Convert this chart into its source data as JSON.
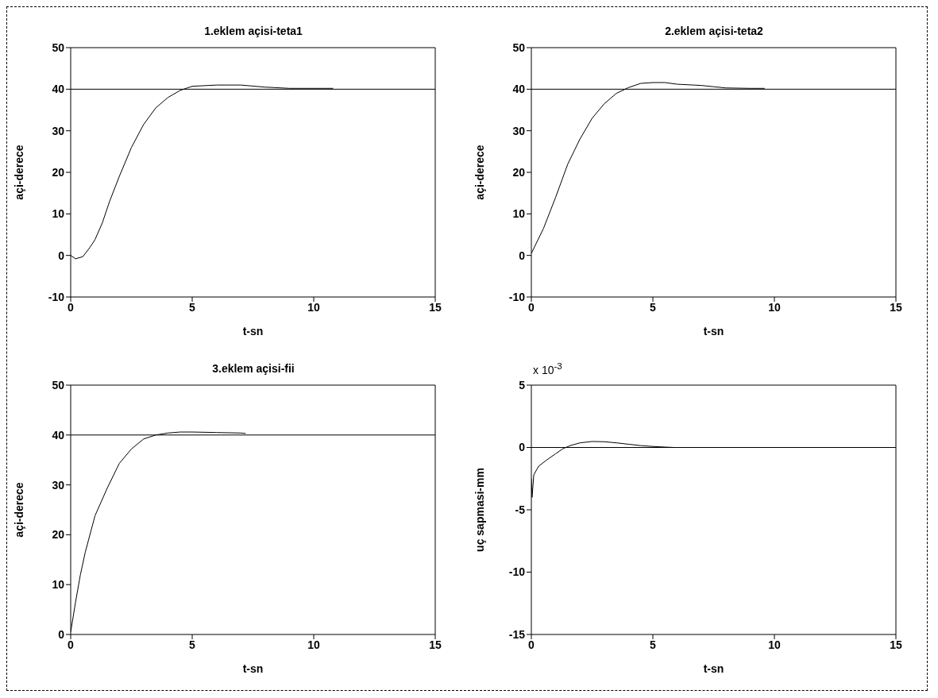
{
  "chart_data": [
    {
      "type": "line",
      "title": "1.eklem açisi-teta1",
      "xlabel": "t-sn",
      "ylabel": "açi-derece",
      "x": [
        0,
        0.2,
        0.5,
        0.8,
        1.0,
        1.3,
        1.6,
        2.0,
        2.5,
        3.0,
        3.5,
        4.0,
        4.5,
        5,
        6,
        7,
        8,
        9,
        10,
        10.8
      ],
      "series": [
        {
          "color": "#000000",
          "values": [
            0,
            -0.8,
            -0.3,
            2,
            3.8,
            7.8,
            13,
            19,
            26,
            31.5,
            35.5,
            38,
            39.7,
            40.7,
            41,
            41,
            40.5,
            40.2,
            40.2,
            40.2
          ]
        }
      ],
      "xlim": [
        0,
        15
      ],
      "ylim": [
        -10,
        50
      ],
      "xticks": [
        0,
        5,
        10,
        15
      ],
      "yticks": [
        -10,
        0,
        10,
        20,
        30,
        40,
        50
      ],
      "ref_lines": [
        {
          "axis": "y",
          "value": 40,
          "color": "#000000"
        }
      ]
    },
    {
      "type": "line",
      "title": "2.eklem açisi-teta2",
      "xlabel": "t-sn",
      "ylabel": "açi-derece",
      "x": [
        0,
        0.5,
        1.0,
        1.5,
        2.0,
        2.5,
        3,
        3.5,
        4,
        4.5,
        5,
        5.5,
        6,
        7,
        7.5,
        8,
        9,
        9.6
      ],
      "series": [
        {
          "color": "#000000",
          "values": [
            0.5,
            6.5,
            14,
            22,
            28,
            33,
            36.5,
            39,
            40.4,
            41.4,
            41.6,
            41.6,
            41.2,
            40.9,
            40.6,
            40.3,
            40.2,
            40.2
          ]
        }
      ],
      "xlim": [
        0,
        15
      ],
      "ylim": [
        -10,
        50
      ],
      "xticks": [
        0,
        5,
        10,
        15
      ],
      "yticks": [
        -10,
        0,
        10,
        20,
        30,
        40,
        50
      ],
      "ref_lines": [
        {
          "axis": "y",
          "value": 40,
          "color": "#000000"
        }
      ]
    },
    {
      "type": "line",
      "title": "3.eklem açisi-fii",
      "xlabel": "t-sn",
      "ylabel": "açi-derece",
      "x": [
        0,
        0.2,
        0.4,
        0.6,
        1.0,
        1.5,
        2,
        2.5,
        3,
        3.5,
        4,
        4.5,
        5,
        6,
        7,
        7.2
      ],
      "series": [
        {
          "color": "#000000",
          "values": [
            0.5,
            6.5,
            12,
            16.5,
            23.8,
            29.3,
            34.3,
            37.2,
            39.2,
            40,
            40.4,
            40.6,
            40.6,
            40.5,
            40.4,
            40.3
          ]
        }
      ],
      "xlim": [
        0,
        15
      ],
      "ylim": [
        0,
        50
      ],
      "xticks": [
        0,
        5,
        10,
        15
      ],
      "yticks": [
        0,
        10,
        20,
        30,
        40,
        50
      ],
      "ref_lines": [
        {
          "axis": "y",
          "value": 40,
          "color": "#000000"
        }
      ]
    },
    {
      "type": "line",
      "xlabel": "t-sn",
      "ylabel": "uç sapmasi-mm",
      "annotations": [
        "x 10$^{-3}$"
      ],
      "x": [
        0,
        0.03,
        0.1,
        0.3,
        0.6,
        1.0,
        1.3,
        1.6,
        2,
        2.5,
        3,
        3.5,
        4,
        4.5,
        5,
        5.5,
        5.9
      ],
      "series": [
        {
          "color": "#000000",
          "values": [
            -2.5,
            -4,
            -2.2,
            -1.5,
            -1.05,
            -0.5,
            -0.1,
            0.15,
            0.37,
            0.48,
            0.46,
            0.37,
            0.26,
            0.15,
            0.08,
            0.03,
            0
          ]
        }
      ],
      "xlim": [
        0,
        15
      ],
      "ylim": [
        -15,
        5
      ],
      "xticks": [
        0,
        5,
        10,
        15
      ],
      "yticks": [
        -15,
        -10,
        -5,
        0,
        5
      ],
      "ref_lines": [
        {
          "axis": "y",
          "value": 0,
          "color": "#000000"
        }
      ]
    }
  ]
}
